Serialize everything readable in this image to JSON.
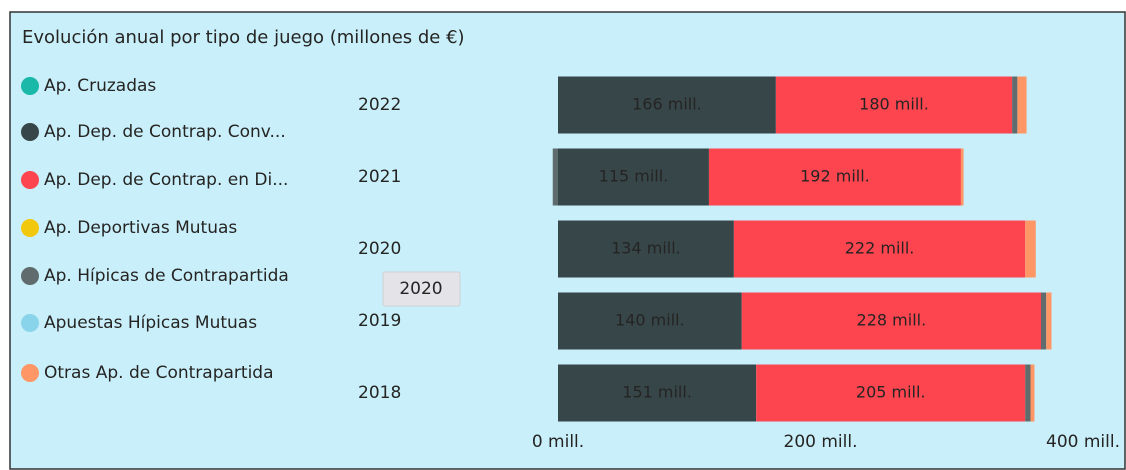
{
  "chart_data": {
    "type": "stacked-barh",
    "title": "Evolución anual por tipo de juego (millones de €)",
    "categories": [
      "2022",
      "2021",
      "2020",
      "2019",
      "2018"
    ],
    "series": [
      {
        "name": "Ap. Cruzadas",
        "color": "#1ab8a8",
        "values": [
          0,
          0,
          0,
          0,
          0
        ]
      },
      {
        "name": "Ap. Dep. de Contrap. Conv...",
        "color": "#374649",
        "values": [
          166,
          115,
          134,
          140,
          151
        ],
        "value_labels": [
          "166 mill.",
          "115 mill.",
          "134 mill.",
          "140 mill.",
          "151 mill."
        ]
      },
      {
        "name": "Ap. Dep. de Contrap. en Di...",
        "color": "#fd454f",
        "values": [
          180,
          192,
          222,
          228,
          205
        ],
        "value_labels": [
          "180 mill.",
          "192 mill.",
          "222 mill.",
          "228 mill.",
          "205 mill."
        ]
      },
      {
        "name": "Ap. Deportivas Mutuas",
        "color": "#f2c80f",
        "values": [
          0,
          0,
          0,
          0,
          0
        ]
      },
      {
        "name": "Ap. Hípicas de Contrapartida",
        "color": "#5f6b6d",
        "values": [
          4,
          -4,
          0,
          4,
          4
        ]
      },
      {
        "name": "Apuestas Hípicas Mutuas",
        "color": "#8ad4eb",
        "values": [
          0,
          0,
          0,
          0,
          0
        ]
      },
      {
        "name": "Otras Ap. de Contrapartida",
        "color": "#fe9666",
        "values": [
          7,
          2,
          8,
          4,
          3
        ]
      }
    ],
    "xlim": [
      -20,
      420
    ],
    "xticks": [
      {
        "value": 0,
        "label": "0 mill."
      },
      {
        "value": 200,
        "label": "200 mill."
      },
      {
        "value": 400,
        "label": "400 mill."
      }
    ],
    "tooltip": "2020"
  }
}
